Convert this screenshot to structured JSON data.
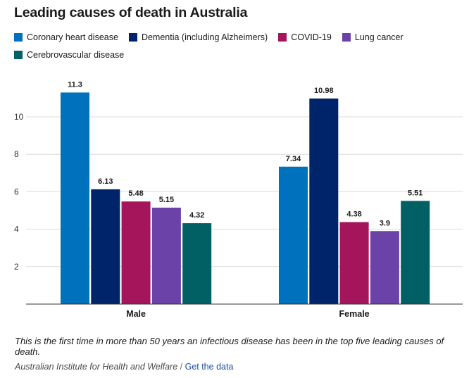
{
  "title": "Leading causes of death in Australia",
  "chart_data": {
    "type": "bar",
    "title": "Leading causes of death in Australia",
    "categories": [
      "Male",
      "Female"
    ],
    "series": [
      {
        "name": "Coronary heart disease",
        "color": "#0071BC",
        "values": [
          11.3,
          7.34
        ]
      },
      {
        "name": "Dementia (including Alzheimers)",
        "color": "#002469",
        "values": [
          6.13,
          10.98
        ]
      },
      {
        "name": "COVID-19",
        "color": "#A4155B",
        "values": [
          5.48,
          4.38
        ]
      },
      {
        "name": "Lung cancer",
        "color": "#6A42A8",
        "values": [
          5.15,
          3.9
        ]
      },
      {
        "name": "Cerebrovascular disease",
        "color": "#006064",
        "values": [
          4.32,
          5.51
        ]
      }
    ],
    "y_ticks": [
      2,
      4,
      6,
      8,
      10
    ],
    "ylim": [
      0,
      12
    ],
    "xlabel": "",
    "ylabel": "",
    "grid": true,
    "legend_position": "top-left"
  },
  "footnote": "This is the first time in more than 50 years an infectious disease has been in the top five leading causes of death.",
  "source": {
    "organisation": "Australian Institute for Health and Welfare",
    "separator": "/",
    "link_label": "Get the data"
  }
}
